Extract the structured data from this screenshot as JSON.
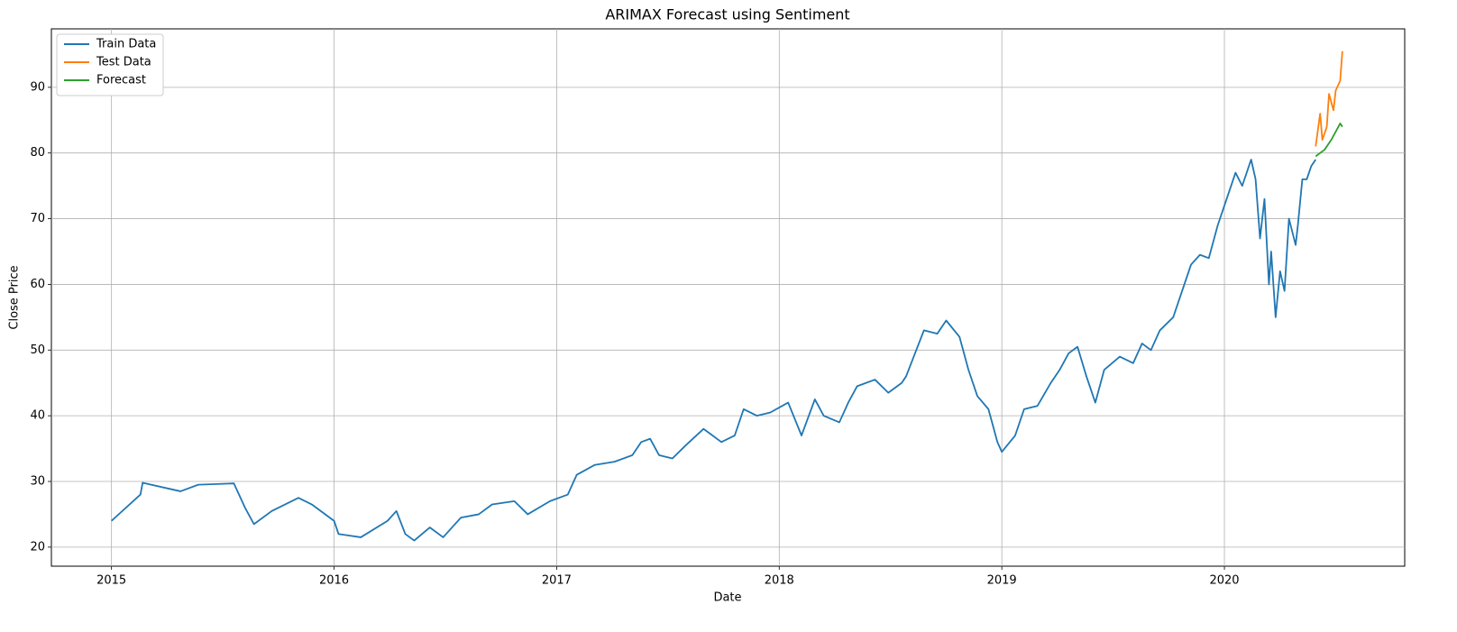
{
  "chart_data": {
    "type": "line",
    "title": "ARIMAX Forecast using Sentiment",
    "x_label": "Date",
    "y_label": "Close Price",
    "xlim": [
      2014.73,
      2020.81
    ],
    "ylim": [
      17.1,
      98.9
    ],
    "xticks": [
      2015,
      2016,
      2017,
      2018,
      2019,
      2020
    ],
    "yticks": [
      20,
      30,
      40,
      50,
      60,
      70,
      80,
      90
    ],
    "grid": true,
    "legend": "upper left",
    "series": [
      {
        "name": "Train Data",
        "color": "#1f77b4",
        "x": [
          2015.0,
          2015.13,
          2015.14,
          2015.31,
          2015.39,
          2015.55,
          2015.6,
          2015.64,
          2015.72,
          2015.84,
          2015.9,
          2016.0,
          2016.02,
          2016.12,
          2016.24,
          2016.28,
          2016.32,
          2016.36,
          2016.43,
          2016.49,
          2016.57,
          2016.65,
          2016.71,
          2016.81,
          2016.87,
          2016.97,
          2017.05,
          2017.09,
          2017.17,
          2017.26,
          2017.34,
          2017.38,
          2017.42,
          2017.46,
          2017.52,
          2017.58,
          2017.66,
          2017.7,
          2017.74,
          2017.8,
          2017.84,
          2017.9,
          2017.96,
          2018.04,
          2018.1,
          2018.16,
          2018.2,
          2018.27,
          2018.31,
          2018.35,
          2018.43,
          2018.49,
          2018.55,
          2018.57,
          2018.61,
          2018.65,
          2018.71,
          2018.75,
          2018.81,
          2018.85,
          2018.89,
          2018.94,
          2018.98,
          2019.0,
          2019.06,
          2019.1,
          2019.16,
          2019.22,
          2019.26,
          2019.3,
          2019.34,
          2019.38,
          2019.42,
          2019.46,
          2019.53,
          2019.59,
          2019.63,
          2019.67,
          2019.71,
          2019.77,
          2019.81,
          2019.85,
          2019.89,
          2019.93,
          2019.97,
          2020.01,
          2020.05,
          2020.08,
          2020.12,
          2020.14,
          2020.16,
          2020.18,
          2020.2,
          2020.21,
          2020.23,
          2020.25,
          2020.27,
          2020.29,
          2020.32,
          2020.33,
          2020.35,
          2020.37,
          2020.39,
          2020.41
        ],
        "values": [
          24,
          28,
          29.8,
          28.5,
          29.5,
          29.7,
          26,
          23.5,
          25.5,
          27.5,
          26.5,
          24,
          22,
          21.5,
          24,
          25.5,
          22,
          21,
          23,
          21.5,
          24.5,
          25,
          26.5,
          27,
          25,
          27,
          28,
          31,
          32.5,
          33,
          34,
          36,
          36.5,
          34,
          33.5,
          35.5,
          38,
          37,
          36,
          37,
          41,
          40,
          40.5,
          42,
          37,
          42.5,
          40,
          39,
          42,
          44.5,
          45.5,
          43.5,
          45,
          46,
          49.5,
          53,
          52.5,
          54.5,
          52,
          47,
          43,
          41,
          36,
          34.5,
          37,
          41,
          41.5,
          45,
          47,
          49.5,
          50.5,
          46,
          42,
          47,
          49,
          48,
          51,
          50,
          53,
          55,
          59,
          63,
          64.5,
          64,
          69,
          73,
          77,
          75,
          79,
          76,
          67,
          73,
          60,
          65,
          55,
          62,
          59,
          70,
          66,
          69,
          76,
          76,
          78,
          79
        ]
      },
      {
        "name": "Test Data",
        "color": "#ff7f0e",
        "x": [
          2020.41,
          2020.43,
          2020.44,
          2020.46,
          2020.47,
          2020.49,
          2020.5,
          2020.52,
          2020.53
        ],
        "values": [
          81,
          86,
          82,
          84,
          89,
          86.5,
          89.5,
          91,
          95.5
        ]
      },
      {
        "name": "Forecast",
        "color": "#2ca02c",
        "x": [
          2020.41,
          2020.45,
          2020.48,
          2020.52,
          2020.53
        ],
        "values": [
          79.5,
          80.5,
          82,
          84.5,
          84
        ]
      }
    ]
  }
}
